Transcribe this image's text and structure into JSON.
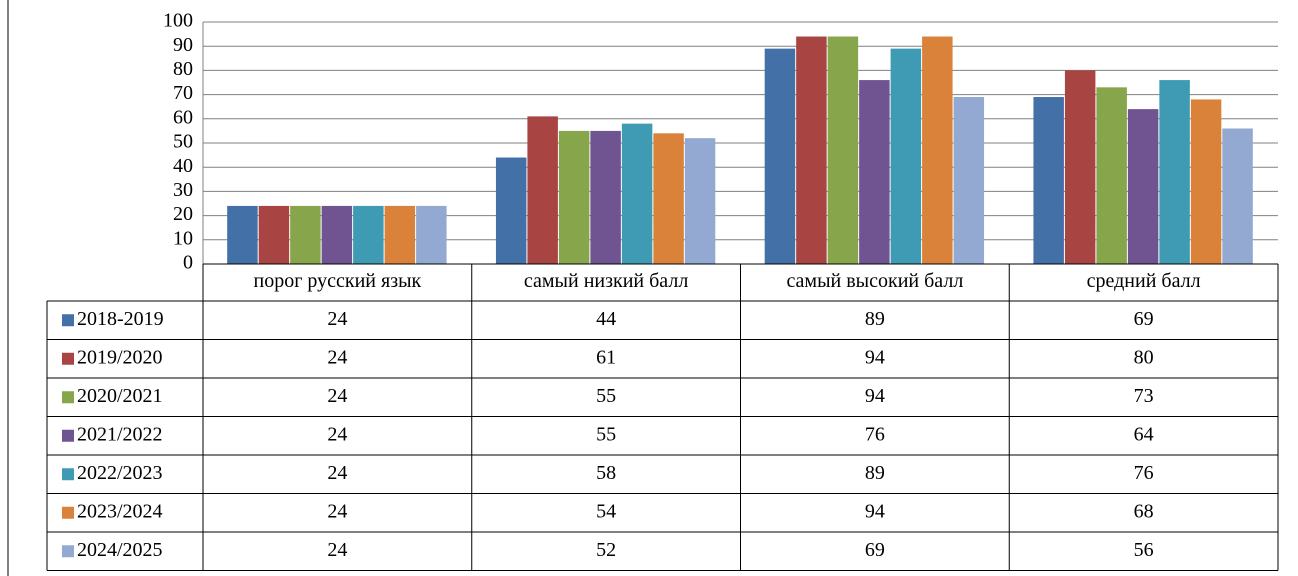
{
  "chart_data": {
    "type": "bar",
    "categories": [
      "порог русский язык",
      "самый низкий балл",
      "самый высокий балл",
      "средний балл"
    ],
    "series": [
      {
        "name": "2018-2019",
        "color": "#4470a8",
        "values": [
          24,
          44,
          89,
          69
        ]
      },
      {
        "name": "2019/2020",
        "color": "#a84442",
        "values": [
          24,
          61,
          94,
          80
        ]
      },
      {
        "name": "2020/2021",
        "color": "#87a54a",
        "values": [
          24,
          55,
          94,
          73
        ]
      },
      {
        "name": "2021/2022",
        "color": "#6f5491",
        "values": [
          24,
          55,
          76,
          64
        ]
      },
      {
        "name": "2022/2023",
        "color": "#3e9bb3",
        "values": [
          24,
          58,
          89,
          76
        ]
      },
      {
        "name": "2023/2024",
        "color": "#db823a",
        "values": [
          24,
          54,
          94,
          68
        ]
      },
      {
        "name": "2024/2025",
        "color": "#93a9d2",
        "values": [
          24,
          52,
          69,
          56
        ]
      }
    ],
    "ylim": [
      0,
      100
    ],
    "yticks": [
      0,
      10,
      20,
      30,
      40,
      50,
      60,
      70,
      80,
      90,
      100
    ],
    "grid": true
  }
}
